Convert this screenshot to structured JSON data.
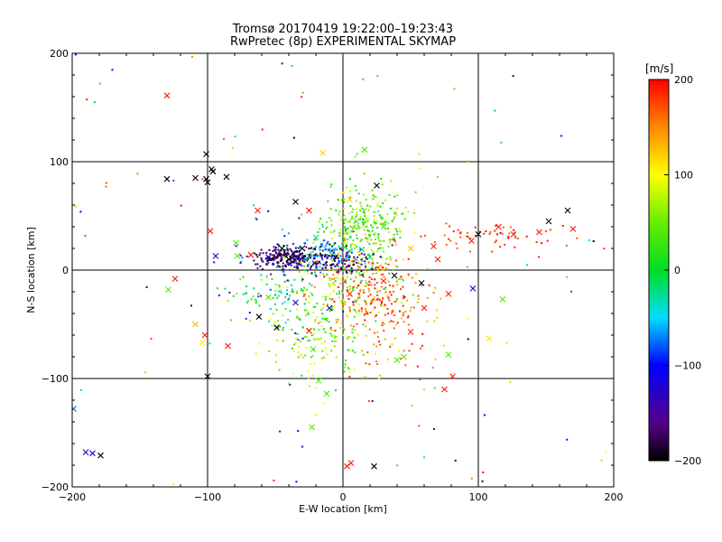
{
  "chart_data": {
    "type": "scatter",
    "title": "Tromsø 20170419 19:22:00–19:23:43",
    "subtitle": "RwPretec (8p) EXPERIMENTAL SKYMAP",
    "xlabel": "E-W location [km]",
    "ylabel": "N-S location [km]",
    "xlim": [
      -200,
      200
    ],
    "ylim": [
      -200,
      200
    ],
    "xticks": [
      -200,
      -100,
      0,
      100,
      200
    ],
    "yticks": [
      -200,
      -100,
      0,
      100,
      200
    ],
    "xtick_labels": [
      "−200",
      "−100",
      "0",
      "100",
      "200"
    ],
    "ytick_labels": [
      "−200",
      "−100",
      "0",
      "100",
      "200"
    ],
    "grid": true,
    "colorbar": {
      "units": "[m/s]",
      "range": [
        -200,
        200
      ],
      "ticks": [
        200,
        100,
        0,
        -100,
        -200
      ],
      "tick_labels": [
        "200",
        "100",
        "0",
        "−100",
        "−200"
      ],
      "colormap": "black-purple-blue-cyan-green-yellow-red"
    },
    "crosses": [
      {
        "x": -130,
        "y": 161,
        "v": 190
      },
      {
        "x": -101,
        "y": 107,
        "v": -200
      },
      {
        "x": -97,
        "y": 93,
        "v": -200
      },
      {
        "x": -96,
        "y": 91,
        "v": -200
      },
      {
        "x": -130,
        "y": 84,
        "v": -200
      },
      {
        "x": -109,
        "y": 85,
        "v": -200
      },
      {
        "x": -101,
        "y": 84,
        "v": -200
      },
      {
        "x": -100,
        "y": 81,
        "v": -200
      },
      {
        "x": -86,
        "y": 86,
        "v": -200
      },
      {
        "x": -15,
        "y": 108,
        "v": 120
      },
      {
        "x": 16,
        "y": 111,
        "v": 40
      },
      {
        "x": -35,
        "y": 63,
        "v": -200
      },
      {
        "x": -63,
        "y": 55,
        "v": 190
      },
      {
        "x": -25,
        "y": 55,
        "v": 190
      },
      {
        "x": 25,
        "y": 78,
        "v": -200
      },
      {
        "x": 166,
        "y": 55,
        "v": -200
      },
      {
        "x": 152,
        "y": 45,
        "v": -200
      },
      {
        "x": 100,
        "y": 33,
        "v": -200
      },
      {
        "x": 126,
        "y": 33,
        "v": 190
      },
      {
        "x": 145,
        "y": 35,
        "v": 190
      },
      {
        "x": 170,
        "y": 38,
        "v": 190
      },
      {
        "x": -98,
        "y": 36,
        "v": 190
      },
      {
        "x": -79,
        "y": 25,
        "v": 40
      },
      {
        "x": -78,
        "y": 13,
        "v": 40
      },
      {
        "x": -68,
        "y": 14,
        "v": 190
      },
      {
        "x": -94,
        "y": 13,
        "v": -120
      },
      {
        "x": -124,
        "y": -8,
        "v": 190
      },
      {
        "x": -129,
        "y": -18,
        "v": 40
      },
      {
        "x": -109,
        "y": -50,
        "v": 130
      },
      {
        "x": -102,
        "y": -60,
        "v": 190
      },
      {
        "x": -104,
        "y": -67,
        "v": 110
      },
      {
        "x": -85,
        "y": -70,
        "v": 190
      },
      {
        "x": -62,
        "y": -43,
        "v": -200
      },
      {
        "x": -49,
        "y": -53,
        "v": -200
      },
      {
        "x": -100,
        "y": -98,
        "v": -200
      },
      {
        "x": -25,
        "y": -56,
        "v": 190
      },
      {
        "x": -22,
        "y": -73,
        "v": 40
      },
      {
        "x": -18,
        "y": -102,
        "v": 40
      },
      {
        "x": -12,
        "y": -114,
        "v": 40
      },
      {
        "x": -23,
        "y": -145,
        "v": 40
      },
      {
        "x": 3,
        "y": -181,
        "v": 190
      },
      {
        "x": 6,
        "y": -178,
        "v": 190
      },
      {
        "x": 23,
        "y": -181,
        "v": -200
      },
      {
        "x": -179,
        "y": -171,
        "v": -200
      },
      {
        "x": -185,
        "y": -169,
        "v": -120
      },
      {
        "x": -190,
        "y": -168,
        "v": -120
      },
      {
        "x": -199,
        "y": -128,
        "v": -80
      },
      {
        "x": 78,
        "y": -78,
        "v": 40
      },
      {
        "x": 81,
        "y": -98,
        "v": 190
      },
      {
        "x": 75,
        "y": -110,
        "v": 190
      },
      {
        "x": 78,
        "y": -22,
        "v": 190
      },
      {
        "x": 96,
        "y": -17,
        "v": -120
      },
      {
        "x": 118,
        "y": -27,
        "v": 40
      },
      {
        "x": 108,
        "y": -63,
        "v": 110
      },
      {
        "x": 58,
        "y": -12,
        "v": -200
      },
      {
        "x": 40,
        "y": -83,
        "v": 40
      },
      {
        "x": 45,
        "y": -80,
        "v": 40
      },
      {
        "x": 50,
        "y": -57,
        "v": 190
      },
      {
        "x": 38,
        "y": -5,
        "v": -200
      },
      {
        "x": 30,
        "y": -10,
        "v": 190
      },
      {
        "x": 20,
        "y": 12,
        "v": -20
      },
      {
        "x": 14,
        "y": 19,
        "v": -20
      },
      {
        "x": 5,
        "y": 65,
        "v": 120
      },
      {
        "x": -45,
        "y": 20,
        "v": -200
      },
      {
        "x": -40,
        "y": 10,
        "v": -200
      },
      {
        "x": -30,
        "y": 20,
        "v": -200
      },
      {
        "x": -55,
        "y": 12,
        "v": -120
      },
      {
        "x": -20,
        "y": 30,
        "v": -20
      },
      {
        "x": 10,
        "y": 45,
        "v": 40
      },
      {
        "x": 30,
        "y": 40,
        "v": 40
      },
      {
        "x": 50,
        "y": 20,
        "v": 130
      },
      {
        "x": 67,
        "y": 22,
        "v": 190
      },
      {
        "x": 70,
        "y": 10,
        "v": 190
      },
      {
        "x": 95,
        "y": 27,
        "v": 190
      },
      {
        "x": 115,
        "y": 40,
        "v": 190
      },
      {
        "x": 60,
        "y": -35,
        "v": 190
      },
      {
        "x": 5,
        "y": -22,
        "v": 190
      },
      {
        "x": -10,
        "y": -35,
        "v": -120
      },
      {
        "x": -35,
        "y": -30,
        "v": -120
      },
      {
        "x": -55,
        "y": -25,
        "v": 40
      }
    ],
    "scatter_seed": 20170419,
    "clusters": [
      {
        "cx": 15,
        "cy": 40,
        "sx": 15,
        "sy": 18,
        "n": 260,
        "vmin": 0,
        "vmax": 90
      },
      {
        "cx": 10,
        "cy": -10,
        "sx": 20,
        "sy": 25,
        "n": 220,
        "vmin": -20,
        "vmax": 200
      },
      {
        "cx": -40,
        "cy": 12,
        "sx": 12,
        "sy": 5,
        "n": 240,
        "vmin": -200,
        "vmax": -150
      },
      {
        "cx": 0,
        "cy": 8,
        "sx": 12,
        "sy": 6,
        "n": 90,
        "vmin": -200,
        "vmax": -150
      },
      {
        "cx": -15,
        "cy": 15,
        "sx": 12,
        "sy": 8,
        "n": 90,
        "vmin": -100,
        "vmax": -40
      },
      {
        "cx": -20,
        "cy": -55,
        "sx": 18,
        "sy": 25,
        "n": 180,
        "vmin": 0,
        "vmax": 120
      },
      {
        "cx": -50,
        "cy": -20,
        "sx": 15,
        "sy": 15,
        "n": 60,
        "vmin": -30,
        "vmax": 80
      },
      {
        "cx": 110,
        "cy": 30,
        "sx": 30,
        "sy": 7,
        "n": 60,
        "vmin": 160,
        "vmax": 200
      },
      {
        "cx": 40,
        "cy": -50,
        "sx": 20,
        "sy": 25,
        "n": 80,
        "vmin": 120,
        "vmax": 200
      },
      {
        "cx": 20,
        "cy": -20,
        "sx": 15,
        "sy": 20,
        "n": 120,
        "vmin": 130,
        "vmax": 200
      },
      {
        "cx": -40,
        "cy": -10,
        "sx": 25,
        "sy": 30,
        "n": 60,
        "vmin": -150,
        "vmax": 0
      }
    ]
  }
}
